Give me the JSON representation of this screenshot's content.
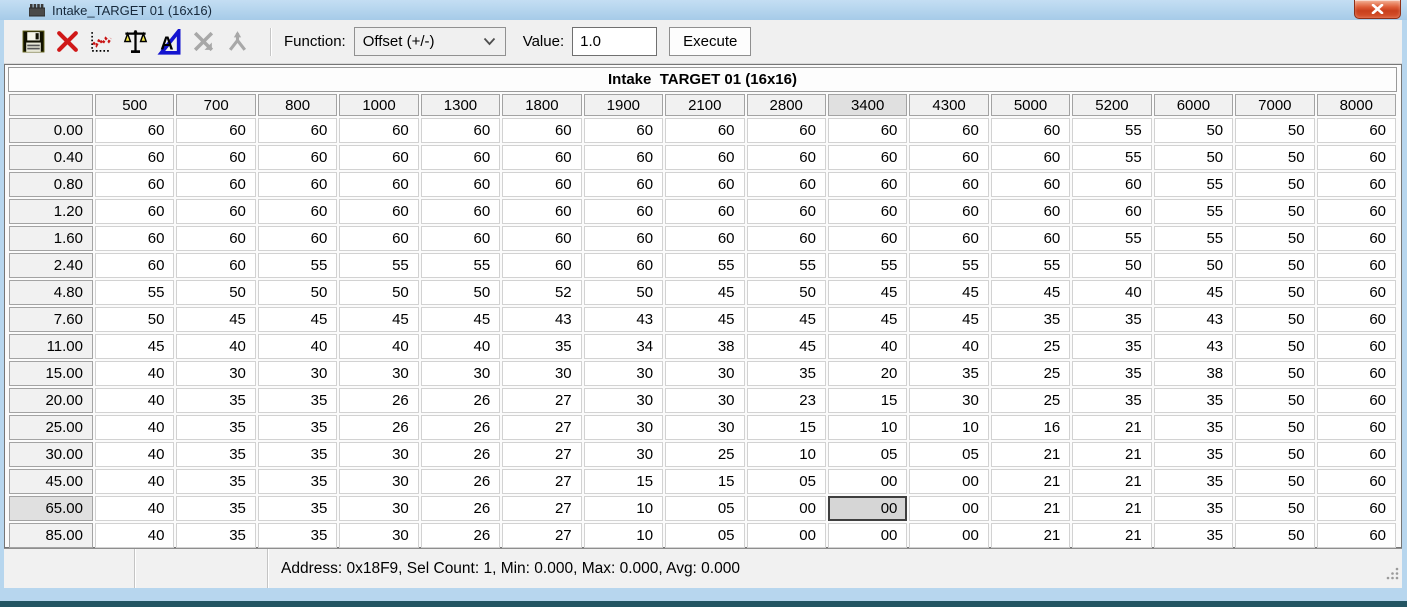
{
  "window": {
    "title": "Intake_TARGET 01 (16x16)"
  },
  "toolbar": {
    "icons": [
      {
        "name": "save-icon",
        "enabled": true
      },
      {
        "name": "delete-x-icon",
        "enabled": true
      },
      {
        "name": "trace-graph-icon",
        "enabled": true
      },
      {
        "name": "scales-icon",
        "enabled": true
      },
      {
        "name": "compare-icon",
        "enabled": true
      },
      {
        "name": "flip-x-icon",
        "enabled": false
      },
      {
        "name": "branch-y-icon",
        "enabled": false
      }
    ],
    "function_label": "Function:",
    "function_selected": "Offset (+/-)",
    "value_label": "Value:",
    "value": "1.0",
    "execute_label": "Execute"
  },
  "table": {
    "title": "Intake  TARGET 01 (16x16)",
    "column_headers": [
      "500",
      "700",
      "800",
      "1000",
      "1300",
      "1800",
      "1900",
      "2100",
      "2800",
      "3400",
      "4300",
      "5000",
      "5200",
      "6000",
      "7000",
      "8000"
    ],
    "row_headers": [
      "0.00",
      "0.40",
      "0.80",
      "1.20",
      "1.60",
      "2.40",
      "4.80",
      "7.60",
      "11.00",
      "15.00",
      "20.00",
      "25.00",
      "30.00",
      "45.00",
      "65.00",
      "85.00"
    ],
    "rows": [
      [
        "60",
        "60",
        "60",
        "60",
        "60",
        "60",
        "60",
        "60",
        "60",
        "60",
        "60",
        "60",
        "55",
        "50",
        "50",
        "60"
      ],
      [
        "60",
        "60",
        "60",
        "60",
        "60",
        "60",
        "60",
        "60",
        "60",
        "60",
        "60",
        "60",
        "55",
        "50",
        "50",
        "60"
      ],
      [
        "60",
        "60",
        "60",
        "60",
        "60",
        "60",
        "60",
        "60",
        "60",
        "60",
        "60",
        "60",
        "60",
        "55",
        "50",
        "60"
      ],
      [
        "60",
        "60",
        "60",
        "60",
        "60",
        "60",
        "60",
        "60",
        "60",
        "60",
        "60",
        "60",
        "60",
        "55",
        "50",
        "60"
      ],
      [
        "60",
        "60",
        "60",
        "60",
        "60",
        "60",
        "60",
        "60",
        "60",
        "60",
        "60",
        "60",
        "55",
        "55",
        "50",
        "60"
      ],
      [
        "60",
        "60",
        "55",
        "55",
        "55",
        "60",
        "60",
        "55",
        "55",
        "55",
        "55",
        "55",
        "50",
        "50",
        "50",
        "60"
      ],
      [
        "55",
        "50",
        "50",
        "50",
        "50",
        "52",
        "50",
        "45",
        "50",
        "45",
        "45",
        "45",
        "40",
        "45",
        "50",
        "60"
      ],
      [
        "50",
        "45",
        "45",
        "45",
        "45",
        "43",
        "43",
        "45",
        "45",
        "45",
        "45",
        "35",
        "35",
        "43",
        "50",
        "60"
      ],
      [
        "45",
        "40",
        "40",
        "40",
        "40",
        "35",
        "34",
        "38",
        "45",
        "40",
        "40",
        "25",
        "35",
        "43",
        "50",
        "60"
      ],
      [
        "40",
        "30",
        "30",
        "30",
        "30",
        "30",
        "30",
        "30",
        "35",
        "20",
        "35",
        "25",
        "35",
        "38",
        "50",
        "60"
      ],
      [
        "40",
        "35",
        "35",
        "26",
        "26",
        "27",
        "30",
        "30",
        "23",
        "15",
        "30",
        "25",
        "35",
        "35",
        "50",
        "60"
      ],
      [
        "40",
        "35",
        "35",
        "26",
        "26",
        "27",
        "30",
        "30",
        "15",
        "10",
        "10",
        "16",
        "21",
        "35",
        "50",
        "60"
      ],
      [
        "40",
        "35",
        "35",
        "30",
        "26",
        "27",
        "30",
        "25",
        "10",
        "05",
        "05",
        "21",
        "21",
        "35",
        "50",
        "60"
      ],
      [
        "40",
        "35",
        "35",
        "30",
        "26",
        "27",
        "15",
        "15",
        "05",
        "00",
        "00",
        "21",
        "21",
        "35",
        "50",
        "60"
      ],
      [
        "40",
        "35",
        "35",
        "30",
        "26",
        "27",
        "10",
        "05",
        "00",
        "00",
        "00",
        "21",
        "21",
        "35",
        "50",
        "60"
      ],
      [
        "40",
        "35",
        "35",
        "30",
        "26",
        "27",
        "10",
        "05",
        "00",
        "00",
        "00",
        "21",
        "21",
        "35",
        "50",
        "60"
      ]
    ],
    "selected_cell": {
      "row_index": 14,
      "col_index": 9,
      "value": "00"
    }
  },
  "status_bar": {
    "info": "Address: 0x18F9, Sel Count: 1, Min: 0.000, Max: 0.000, Avg: 0.000"
  },
  "colors": {
    "titlebar_bg": "#a9cde9",
    "close_button_red": "#d8542e",
    "toolbar_bg": "#f0f0f0",
    "selected_cell_bg": "#d6d6d6",
    "bottom_bar_teal": "#235563"
  }
}
